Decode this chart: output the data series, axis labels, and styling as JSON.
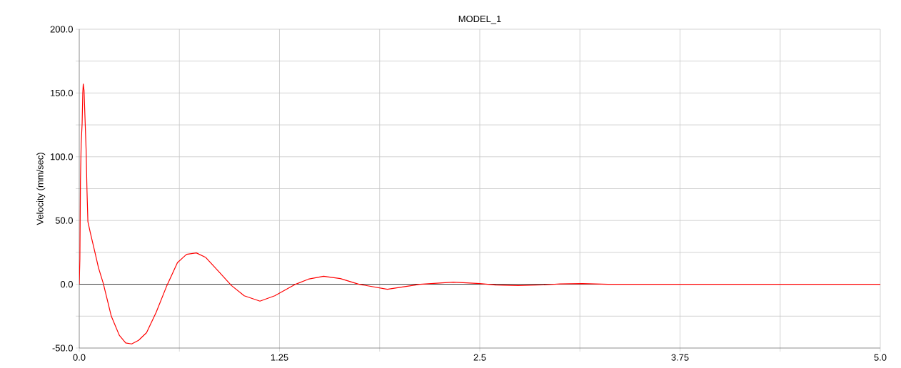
{
  "chart_data": {
    "type": "line",
    "title": "MODEL_1",
    "ylabel": "Velocity (mm/sec)",
    "x": [
      0,
      0.004,
      0.0075,
      0.012,
      0.018,
      0.022,
      0.025,
      0.03,
      0.036,
      0.043,
      0.048,
      0.054,
      0.07,
      0.098,
      0.12,
      0.15,
      0.2,
      0.25,
      0.29,
      0.327,
      0.37,
      0.42,
      0.48,
      0.547,
      0.613,
      0.67,
      0.731,
      0.79,
      0.87,
      0.95,
      1.03,
      1.128,
      1.22,
      1.35,
      1.43,
      1.525,
      1.63,
      1.746,
      1.923,
      2.127,
      2.335,
      2.5,
      2.6,
      2.74,
      2.9,
      3.0,
      3.14,
      3.3,
      3.6,
      4.0,
      5.0
    ],
    "series": [
      {
        "color": "#ff0000",
        "values": [
          0,
          20,
          81,
          110,
          126,
          150,
          157,
          152,
          130,
          105,
          75,
          49,
          40,
          25,
          13,
          0.7,
          -25,
          -40,
          -46,
          -46.8,
          -44,
          -38,
          -22,
          -1,
          17,
          23.5,
          24.6,
          21,
          10,
          -1,
          -9,
          -13.2,
          -9,
          0,
          4,
          6.3,
          4.5,
          0,
          -3.9,
          0,
          1.7,
          0.5,
          -0.6,
          -1,
          -0.5,
          0.3,
          0.5,
          0,
          0,
          0,
          0
        ]
      }
    ],
    "xlim": [
      0,
      5.0
    ],
    "xticks": [
      {
        "value": 0,
        "label": "0.0"
      },
      {
        "value": 0.625,
        "label": null
      },
      1.25,
      {
        "value": 1.875,
        "label": null
      },
      2.5,
      {
        "value": 3.125,
        "label": null
      },
      3.75,
      {
        "value": 4.375,
        "label": null
      },
      {
        "value": 5,
        "label": "5.0"
      }
    ],
    "ylim": [
      -50,
      200
    ],
    "yticks": [
      {
        "value": -50,
        "label": "-50.0"
      },
      {
        "value": -25,
        "label": null
      },
      {
        "value": 0,
        "label": "0.0"
      },
      {
        "value": 25,
        "label": null
      },
      {
        "value": 50,
        "label": "50.0"
      },
      {
        "value": 75,
        "label": null
      },
      {
        "value": 100,
        "label": "100.0"
      },
      {
        "value": 125,
        "label": null
      },
      {
        "value": 150,
        "label": "150.0"
      },
      {
        "value": 175,
        "label": null
      },
      {
        "value": 200,
        "label": "200.0"
      }
    ],
    "grid": true,
    "ref_lines": [
      {
        "axis": "y",
        "value": 0,
        "color": "#000000"
      }
    ]
  }
}
